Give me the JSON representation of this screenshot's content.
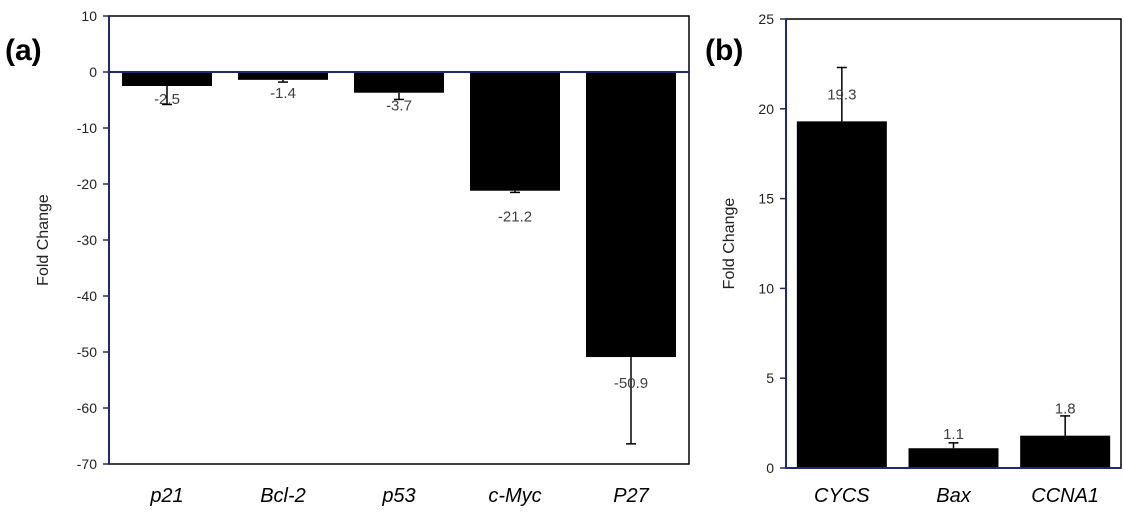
{
  "colors": {
    "bar": "#000000",
    "axis": "#1f2a6b",
    "frame": "#000000",
    "label": "#404040"
  },
  "chart_data": [
    {
      "panel_label": "(a)",
      "type": "bar",
      "categories": [
        "p21",
        "Bcl-2",
        "p53",
        "c-Myc",
        "P27"
      ],
      "values": [
        -2.5,
        -1.4,
        -3.7,
        -21.2,
        -50.9
      ],
      "error_bars": [
        3.3,
        0.4,
        1.2,
        0.3,
        15.5
      ],
      "data_labels": [
        "-2.5",
        "-1.4",
        "-3.7",
        "-21.2",
        "-50.9"
      ],
      "ylabel": "Fold Change",
      "xlabel": "",
      "ylim": [
        -70,
        10
      ],
      "yticks": [
        10,
        0,
        -10,
        -20,
        -30,
        -40,
        -50,
        -60,
        -70
      ],
      "ytick_labels": [
        "10",
        "0",
        "-10",
        "-20",
        "-30",
        "-40",
        "-50",
        "-60",
        "-70"
      ],
      "grid": false,
      "category_style": "italic"
    },
    {
      "panel_label": "(b)",
      "type": "bar",
      "categories": [
        "CYCS",
        "Bax",
        "CCNA1"
      ],
      "values": [
        19.3,
        1.1,
        1.8
      ],
      "error_bars": [
        3.0,
        0.3,
        1.1
      ],
      "data_labels": [
        "19.3",
        "1.1",
        "1.8"
      ],
      "ylabel": "Fold Change",
      "xlabel": "",
      "ylim": [
        0,
        25
      ],
      "yticks": [
        0,
        5,
        10,
        15,
        20,
        25
      ],
      "ytick_labels": [
        "0",
        "5",
        "10",
        "15",
        "20",
        "25"
      ],
      "grid": false,
      "category_style": "italic"
    }
  ]
}
